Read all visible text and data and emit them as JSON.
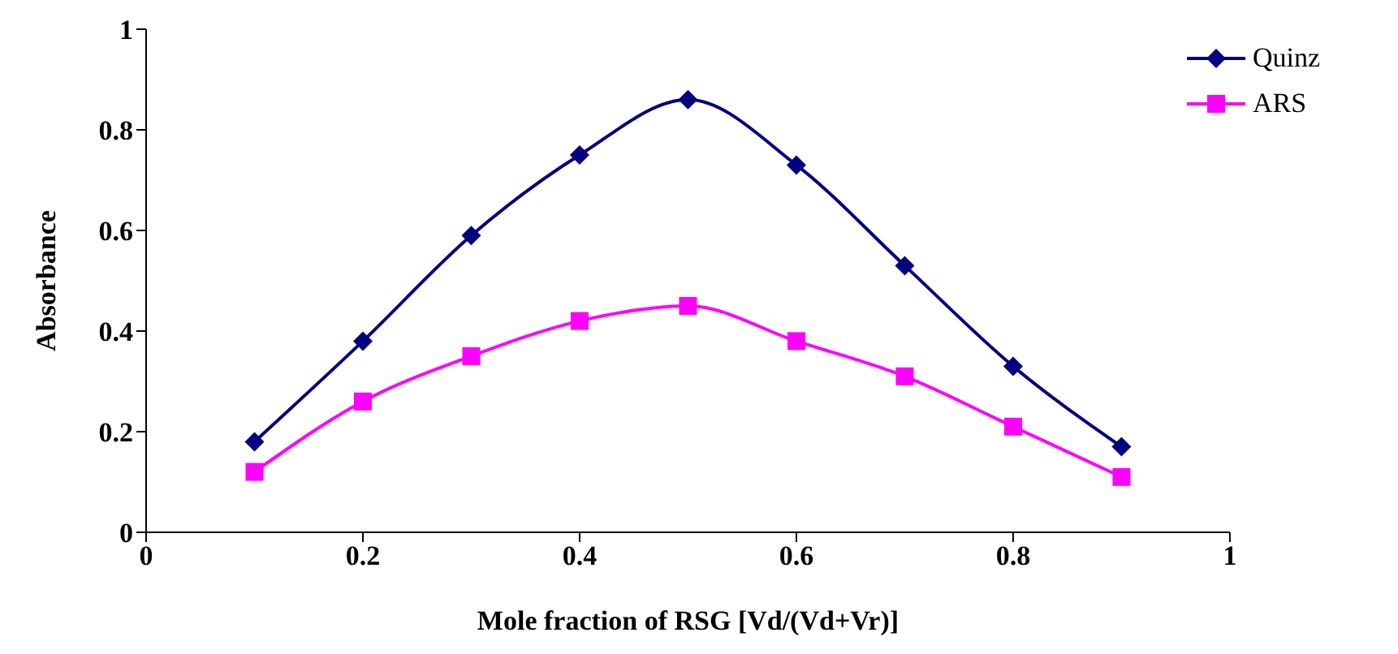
{
  "chart_data": {
    "type": "line",
    "xlabel": "Mole fraction of RSG [Vd/(Vd+Vr)]",
    "ylabel": "Absorbance",
    "x": [
      0.1,
      0.2,
      0.3,
      0.4,
      0.5,
      0.6,
      0.7,
      0.8,
      0.9
    ],
    "series": [
      {
        "name": "Quinz",
        "color": "#000080",
        "marker": "diamond",
        "values": [
          0.18,
          0.38,
          0.59,
          0.75,
          0.86,
          0.73,
          0.53,
          0.33,
          0.17
        ]
      },
      {
        "name": "ARS",
        "color": "#ff00ff",
        "marker": "square",
        "values": [
          0.12,
          0.26,
          0.35,
          0.42,
          0.45,
          0.38,
          0.31,
          0.21,
          0.11
        ]
      }
    ],
    "xlim": [
      0,
      1
    ],
    "xticks": [
      0,
      0.2,
      0.4,
      0.6,
      0.8,
      1
    ],
    "ylim": [
      0,
      1
    ],
    "yticks": [
      0,
      0.2,
      0.4,
      0.6,
      0.8,
      1
    ],
    "grid": false,
    "legend": "top right",
    "line_style": "solid"
  }
}
